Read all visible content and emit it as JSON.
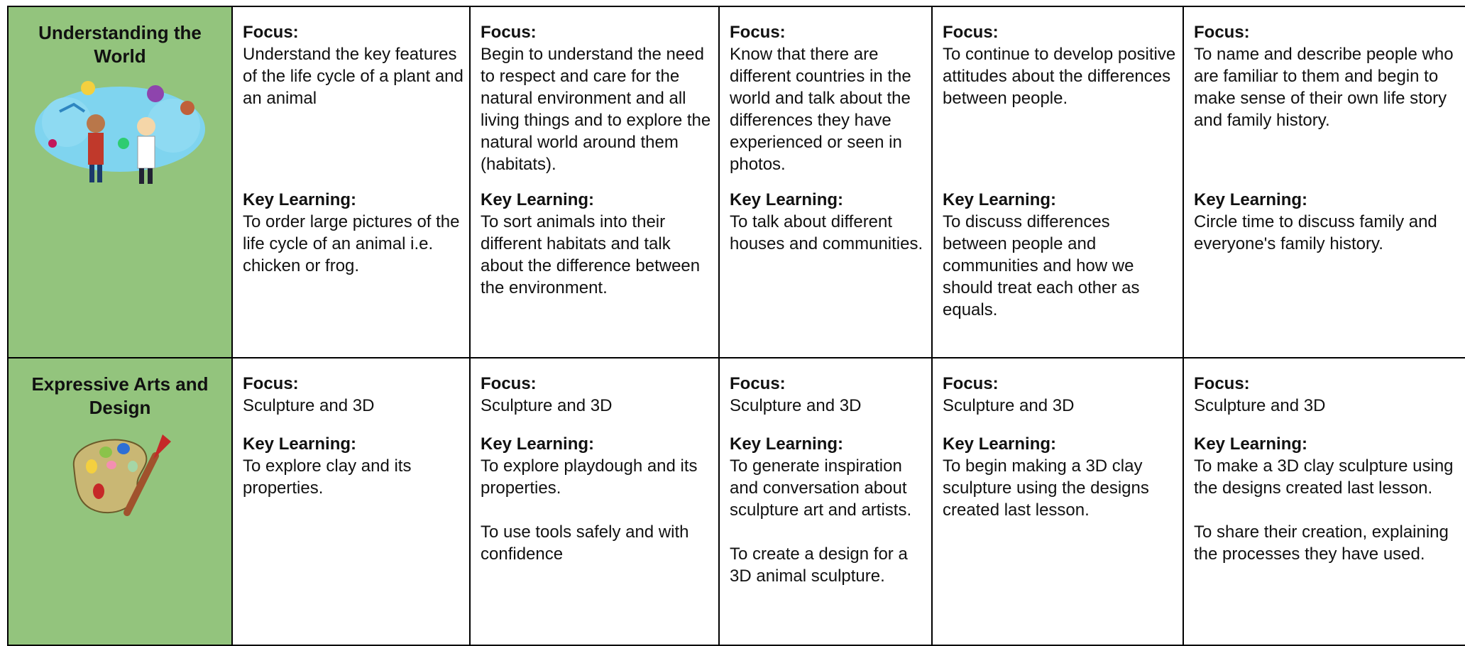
{
  "rows": [
    {
      "subject": "Understanding the World",
      "cells": [
        {
          "focus_label": "Focus:",
          "focus": "Understand the key features of the life cycle of a plant and an animal",
          "key_label": "Key Learning:",
          "key": [
            "To order large pictures of the life cycle of an animal i.e. chicken or frog."
          ]
        },
        {
          "focus_label": "Focus:",
          "focus": "Begin to understand the need to respect and care for the natural environment and all living things and to explore the natural world around them (habitats).",
          "key_label": "Key Learning:",
          "key": [
            "To sort animals into their different habitats and talk about the difference between the environment."
          ]
        },
        {
          "focus_label": "Focus:",
          "focus": "Know that there are different countries in the world and talk about the differences they have experienced or seen in photos.",
          "key_label": "Key Learning:",
          "key": [
            "To talk about different houses and communities."
          ]
        },
        {
          "focus_label": "Focus:",
          "focus": "To continue to develop positive attitudes about the differences between people.",
          "key_label": "Key Learning:",
          "key": [
            "To discuss differences between people and communities and how we should treat each other as equals."
          ]
        },
        {
          "focus_label": "Focus:",
          "focus": "To name and describe people who are familiar to them and begin to make sense of their own life story and family history.",
          "key_label": "Key Learning:",
          "key": [
            "Circle time to discuss family and everyone's family history."
          ]
        }
      ]
    },
    {
      "subject": "Expressive Arts and Design",
      "cells": [
        {
          "focus_label": "Focus:",
          "focus": "Sculpture and 3D",
          "key_label": "Key Learning:",
          "key": [
            "To explore clay and its properties."
          ]
        },
        {
          "focus_label": "Focus:",
          "focus": "Sculpture and 3D",
          "key_label": "Key Learning:",
          "key": [
            "To explore playdough and its properties.",
            "To use tools safely and with confidence"
          ]
        },
        {
          "focus_label": "Focus:",
          "focus": "Sculpture and 3D",
          "key_label": "Key Learning:",
          "key": [
            "To generate inspiration and conversation about sculpture art and artists.",
            "To create a design for a 3D animal sculpture."
          ]
        },
        {
          "focus_label": "Focus:",
          "focus": "Sculpture and 3D",
          "key_label": "Key Learning:",
          "key": [
            "To begin making a 3D clay sculpture using the designs created last lesson."
          ]
        },
        {
          "focus_label": "Focus:",
          "focus": "Sculpture and 3D",
          "key_label": "Key Learning:",
          "key": [
            "To make a 3D clay sculpture using the designs created last lesson.",
            "To share their creation, explaining the processes they have used."
          ]
        }
      ]
    }
  ]
}
